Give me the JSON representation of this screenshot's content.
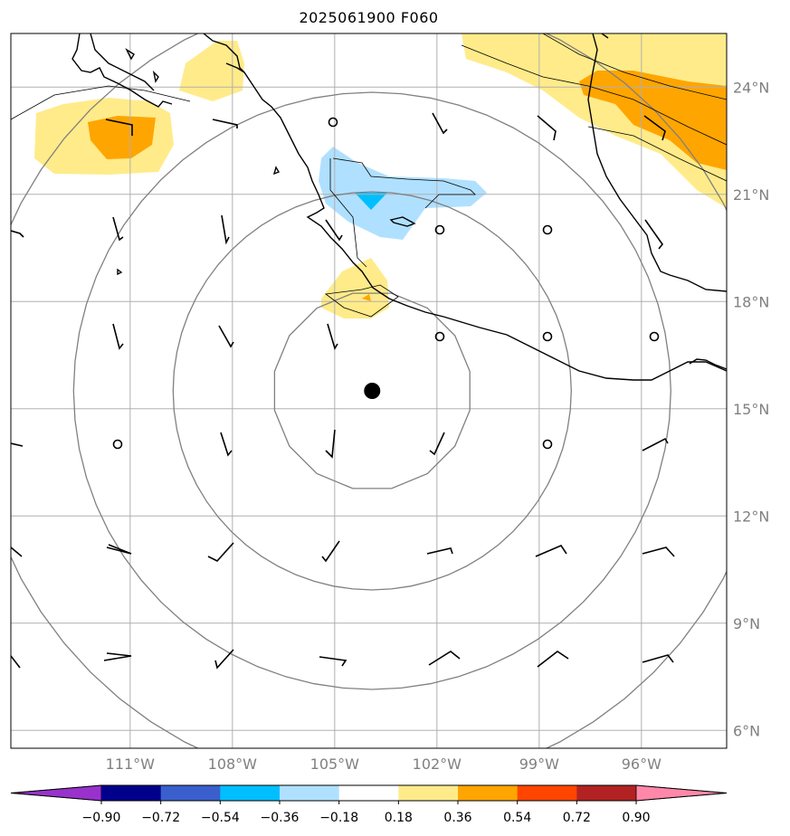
{
  "title": "2025061900 F060",
  "map": {
    "lon_range": [
      -114.5,
      -93.5
    ],
    "lat_range": [
      5.5,
      25.5
    ],
    "lat_ticks": [
      {
        "value": 24,
        "label": "24°N"
      },
      {
        "value": 21,
        "label": "21°N"
      },
      {
        "value": 18,
        "label": "18°N"
      },
      {
        "value": 15,
        "label": "15°N"
      },
      {
        "value": 12,
        "label": "12°N"
      },
      {
        "value": 9,
        "label": "9°N"
      },
      {
        "value": 6,
        "label": "6°N"
      }
    ],
    "lon_ticks": [
      {
        "value": -111,
        "label": "111°W"
      },
      {
        "value": -108,
        "label": "108°W"
      },
      {
        "value": -105,
        "label": "105°W"
      },
      {
        "value": -102,
        "label": "102°W"
      },
      {
        "value": -99,
        "label": "99°W"
      },
      {
        "value": -96,
        "label": "96°W"
      }
    ],
    "storm_center": {
      "lon": -103.9,
      "lat": 15.5
    },
    "range_ring_count": 4
  },
  "colorbar": {
    "colors": [
      "#9932CC",
      "#00008B",
      "#3A5FCD",
      "#00BFFF",
      "#B0E0FF",
      "#FFFFFF",
      "#FFEB8A",
      "#FFA500",
      "#FF4500",
      "#B22222",
      "#FF88AA"
    ],
    "labels": [
      "−0.90",
      "−0.72",
      "−0.54",
      "−0.36",
      "−0.18",
      "0.18",
      "0.36",
      "0.54",
      "0.72",
      "0.90"
    ]
  }
}
